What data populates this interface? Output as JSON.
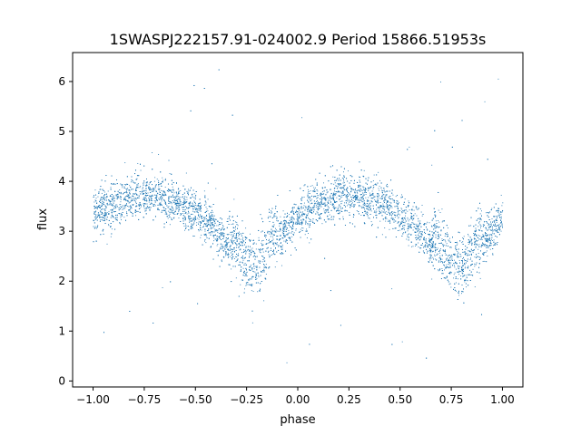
{
  "chart_data": {
    "type": "scatter",
    "title": "1SWASPJ222157.91-024002.9 Period 15866.51953s",
    "xlabel": "phase",
    "ylabel": "flux",
    "xlim": [
      -1.1,
      1.1
    ],
    "ylim": [
      -0.12,
      6.58
    ],
    "xticks": [
      -1.0,
      -0.75,
      -0.5,
      -0.25,
      0.0,
      0.25,
      0.5,
      0.75,
      1.0
    ],
    "xtick_labels": [
      "−1.00",
      "−0.75",
      "−0.50",
      "−0.25",
      "0.00",
      "0.25",
      "0.50",
      "0.75",
      "1.00"
    ],
    "yticks": [
      0,
      1,
      2,
      3,
      4,
      5,
      6
    ],
    "ytick_labels": [
      "0",
      "1",
      "2",
      "3",
      "4",
      "5",
      "6"
    ],
    "grid": false,
    "marker_color": "#1f77b4",
    "series": [
      {
        "values_description": "Phase-folded light curve: dense band of points with two minima per cycle",
        "x": [
          -1.0,
          -0.9,
          -0.8,
          -0.75,
          -0.7,
          -0.6,
          -0.5,
          -0.4,
          -0.3,
          -0.25,
          -0.22,
          -0.2,
          -0.15,
          -0.1,
          0.0,
          0.1,
          0.2,
          0.25,
          0.3,
          0.4,
          0.5,
          0.6,
          0.7,
          0.75,
          0.78,
          0.8,
          0.85,
          0.9,
          1.0
        ],
        "y": [
          3.35,
          3.55,
          3.7,
          3.72,
          3.72,
          3.6,
          3.35,
          3.0,
          2.45,
          2.15,
          2.05,
          2.1,
          2.5,
          2.85,
          3.3,
          3.55,
          3.7,
          3.72,
          3.72,
          3.6,
          3.35,
          3.0,
          2.45,
          2.2,
          2.1,
          2.1,
          2.4,
          2.75,
          3.3
        ]
      }
    ]
  }
}
